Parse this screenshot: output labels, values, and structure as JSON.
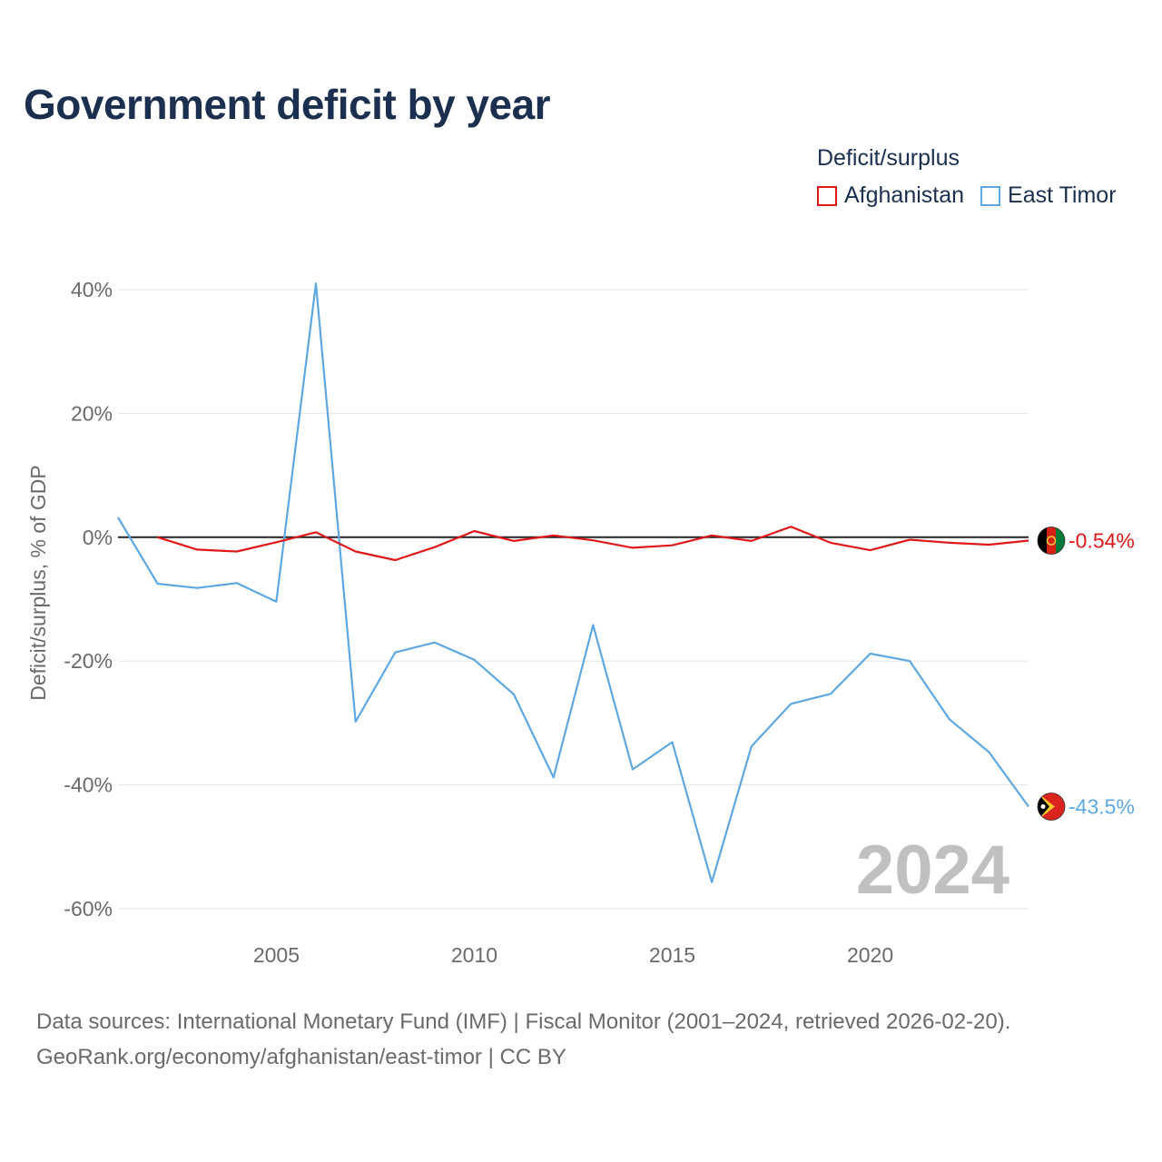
{
  "header": {
    "title": "Government deficit by year"
  },
  "legend": {
    "title": "Deficit/surplus",
    "items": [
      {
        "label": "Afghanistan",
        "color": "#e01818"
      },
      {
        "label": "East Timor",
        "color": "#5da8e2"
      }
    ]
  },
  "footer": {
    "sources_line": "Data sources: International Monetary Fund (IMF) | Fiscal Monitor (2001–2024, retrieved 2026-02-20).",
    "credit_line": "GeoRank.org/economy/afghanistan/east-timor | CC BY"
  },
  "chart_data": {
    "type": "line",
    "title": "Government deficit by year",
    "ylabel": "Deficit/surplus, % of GDP",
    "xlabel": "",
    "year_marker": "2024",
    "ylim": [
      -60,
      40
    ],
    "xlim": [
      2001,
      2024
    ],
    "yticks": [
      40,
      20,
      0,
      -20,
      -40,
      -60
    ],
    "ytick_labels": [
      "40%",
      "20%",
      "0%",
      "-20%",
      "-40%",
      "-60%"
    ],
    "xticks": [
      2005,
      2010,
      2015,
      2020
    ],
    "xtick_labels": [
      "2005",
      "2010",
      "2015",
      "2020"
    ],
    "grid": true,
    "legend_position": "top-right",
    "series": [
      {
        "name": "Afghanistan",
        "color": "#e01818",
        "flag_icon": "afghanistan-flag-icon",
        "end_label": "-0.54%",
        "x": [
          2002,
          2003,
          2004,
          2005,
          2006,
          2007,
          2008,
          2009,
          2010,
          2011,
          2012,
          2013,
          2014,
          2015,
          2016,
          2017,
          2018,
          2019,
          2020,
          2021,
          2022,
          2023,
          2024
        ],
        "values": [
          0.0,
          -2.0,
          -2.3,
          -0.8,
          0.8,
          -2.3,
          -3.7,
          -1.6,
          1.0,
          -0.6,
          0.3,
          -0.5,
          -1.7,
          -1.3,
          0.3,
          -0.6,
          1.7,
          -0.9,
          -2.1,
          -0.4,
          -0.9,
          -1.2,
          -0.54
        ]
      },
      {
        "name": "East Timor",
        "color": "#5da8e2",
        "flag_icon": "east-timor-flag-icon",
        "end_label": "-43.5%",
        "x": [
          2001,
          2002,
          2003,
          2004,
          2005,
          2006,
          2007,
          2008,
          2009,
          2010,
          2011,
          2012,
          2013,
          2014,
          2015,
          2016,
          2017,
          2018,
          2019,
          2020,
          2021,
          2022,
          2023,
          2024
        ],
        "values": [
          3.2,
          -7.5,
          -8.2,
          -7.4,
          -10.4,
          41.0,
          -29.8,
          -18.6,
          -17.0,
          -19.8,
          -25.4,
          -38.8,
          -14.2,
          -37.5,
          -33.1,
          -55.7,
          -33.8,
          -26.9,
          -25.3,
          -18.8,
          -20.0,
          -29.4,
          -34.7,
          -43.5
        ]
      }
    ]
  }
}
